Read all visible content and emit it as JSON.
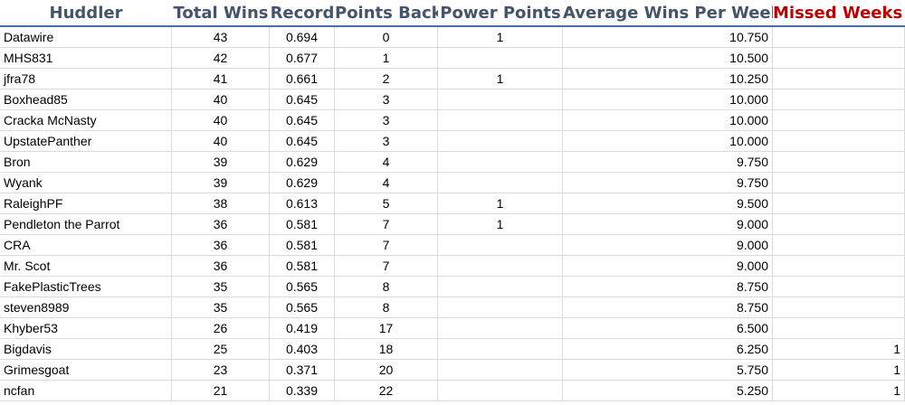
{
  "headers": {
    "huddler": "Huddler",
    "total_wins": "Total Wins",
    "record": "Record",
    "points_back": "Points Back",
    "power_points": "Power Points",
    "avg_wins": "Average Wins Per Week",
    "missed_weeks": "Missed Weeks"
  },
  "rows": [
    {
      "name": "Datawire",
      "wins": "43",
      "record": "0.694",
      "back": "0",
      "power": "1",
      "avg": "10.750",
      "missed": ""
    },
    {
      "name": "MHS831",
      "wins": "42",
      "record": "0.677",
      "back": "1",
      "power": "",
      "avg": "10.500",
      "missed": ""
    },
    {
      "name": "jfra78",
      "wins": "41",
      "record": "0.661",
      "back": "2",
      "power": "1",
      "avg": "10.250",
      "missed": ""
    },
    {
      "name": "Boxhead85",
      "wins": "40",
      "record": "0.645",
      "back": "3",
      "power": "",
      "avg": "10.000",
      "missed": ""
    },
    {
      "name": "Cracka McNasty",
      "wins": "40",
      "record": "0.645",
      "back": "3",
      "power": "",
      "avg": "10.000",
      "missed": ""
    },
    {
      "name": "UpstatePanther",
      "wins": "40",
      "record": "0.645",
      "back": "3",
      "power": "",
      "avg": "10.000",
      "missed": ""
    },
    {
      "name": "Bron",
      "wins": "39",
      "record": "0.629",
      "back": "4",
      "power": "",
      "avg": "9.750",
      "missed": ""
    },
    {
      "name": "Wyank",
      "wins": "39",
      "record": "0.629",
      "back": "4",
      "power": "",
      "avg": "9.750",
      "missed": ""
    },
    {
      "name": "RaleighPF",
      "wins": "38",
      "record": "0.613",
      "back": "5",
      "power": "1",
      "avg": "9.500",
      "missed": ""
    },
    {
      "name": "Pendleton the Parrot",
      "wins": "36",
      "record": "0.581",
      "back": "7",
      "power": "1",
      "avg": "9.000",
      "missed": ""
    },
    {
      "name": "CRA",
      "wins": "36",
      "record": "0.581",
      "back": "7",
      "power": "",
      "avg": "9.000",
      "missed": ""
    },
    {
      "name": "Mr. Scot",
      "wins": "36",
      "record": "0.581",
      "back": "7",
      "power": "",
      "avg": "9.000",
      "missed": ""
    },
    {
      "name": "FakePlasticTrees",
      "wins": "35",
      "record": "0.565",
      "back": "8",
      "power": "",
      "avg": "8.750",
      "missed": ""
    },
    {
      "name": "steven8989",
      "wins": "35",
      "record": "0.565",
      "back": "8",
      "power": "",
      "avg": "8.750",
      "missed": ""
    },
    {
      "name": "Khyber53",
      "wins": "26",
      "record": "0.419",
      "back": "17",
      "power": "",
      "avg": "6.500",
      "missed": ""
    },
    {
      "name": "Bigdavis",
      "wins": "25",
      "record": "0.403",
      "back": "18",
      "power": "",
      "avg": "6.250",
      "missed": "1"
    },
    {
      "name": "Grimesgoat",
      "wins": "23",
      "record": "0.371",
      "back": "20",
      "power": "",
      "avg": "5.750",
      "missed": "1"
    },
    {
      "name": "ncfan",
      "wins": "21",
      "record": "0.339",
      "back": "22",
      "power": "",
      "avg": "5.250",
      "missed": "1"
    }
  ],
  "colors": {
    "header_text": "#44546a",
    "missed_header": "#c00000",
    "gridline": "#dadada",
    "header_border": "#4a6fa5"
  }
}
